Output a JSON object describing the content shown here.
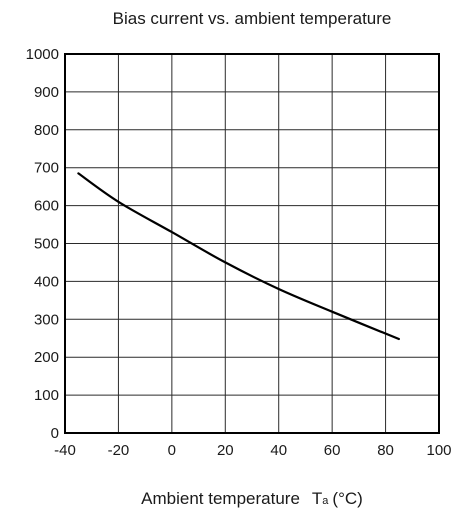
{
  "chart_data": {
    "type": "line",
    "title": "Bias current vs. ambient temperature",
    "xlabel": {
      "main": "Ambient temperature",
      "symbol": "T",
      "subscript": "a",
      "unit": "(°C)"
    },
    "ylabel": "",
    "xlim": [
      -40,
      100
    ],
    "ylim": [
      0,
      1000
    ],
    "xticks": [
      -40,
      -20,
      0,
      20,
      40,
      60,
      80,
      100
    ],
    "yticks": [
      0,
      100,
      200,
      300,
      400,
      500,
      600,
      700,
      800,
      900,
      1000
    ],
    "grid": true,
    "series": [
      {
        "x": [
          -35,
          -20,
          0,
          20,
          40,
          60,
          85
        ],
        "y": [
          685,
          610,
          530,
          450,
          380,
          320,
          248
        ]
      }
    ]
  }
}
